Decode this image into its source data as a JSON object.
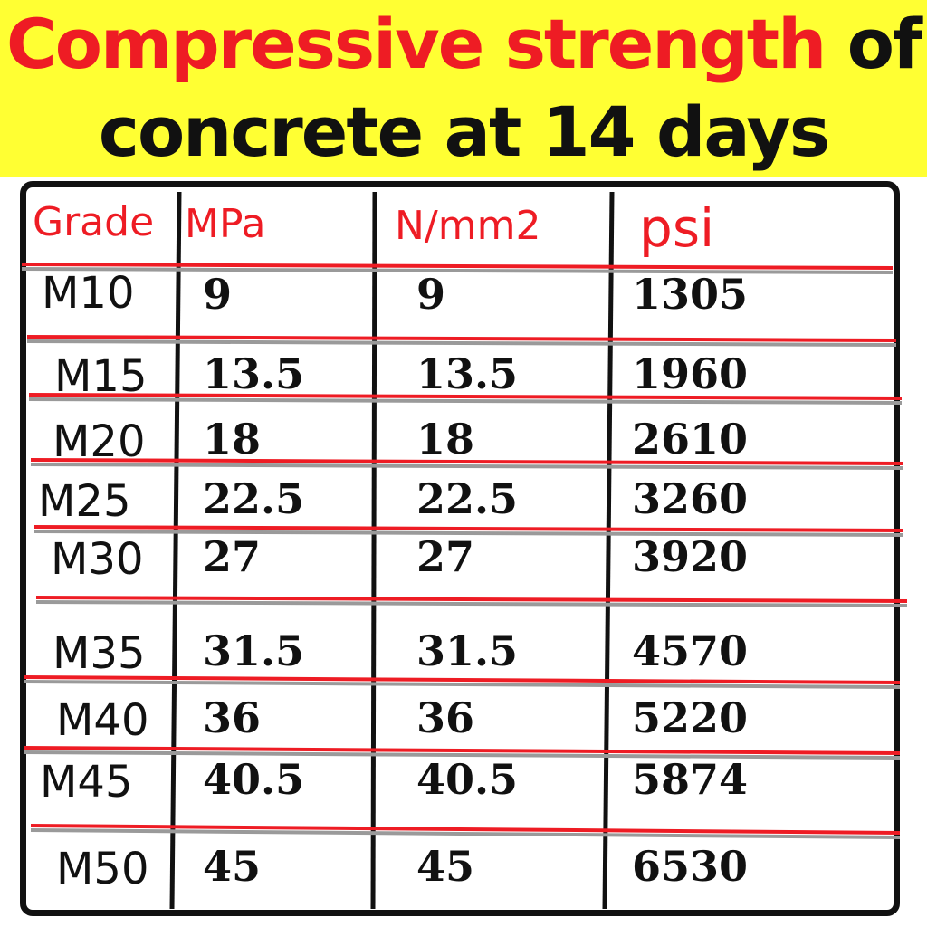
{
  "title": {
    "line1_red": "Compressive strength",
    "line1_black": "of",
    "line2": "concrete at 14 days"
  },
  "colors": {
    "banner": "#ffff33",
    "accent_red": "#ee1c24",
    "text": "#111111",
    "row_divider_gray": "#9a9a9a"
  },
  "chart_data": {
    "type": "table",
    "title": "Compressive strength of concrete at 14 days",
    "columns": [
      "Grade",
      "MPa",
      "N/mm2",
      "psi"
    ],
    "rows": [
      [
        "M10",
        "9",
        "9",
        "1305"
      ],
      [
        "M15",
        "13.5",
        "13.5",
        "1960"
      ],
      [
        "M20",
        "18",
        "18",
        "2610"
      ],
      [
        "M25",
        "22.5",
        "22.5",
        "3260"
      ],
      [
        "M30",
        "27",
        "27",
        "3920"
      ],
      [
        "M35",
        "31.5",
        "31.5",
        "4570"
      ],
      [
        "M40",
        "36",
        "36",
        "5220"
      ],
      [
        "M45",
        "40.5",
        "40.5",
        "5874"
      ],
      [
        "M50",
        "45",
        "45",
        "6530"
      ]
    ]
  }
}
